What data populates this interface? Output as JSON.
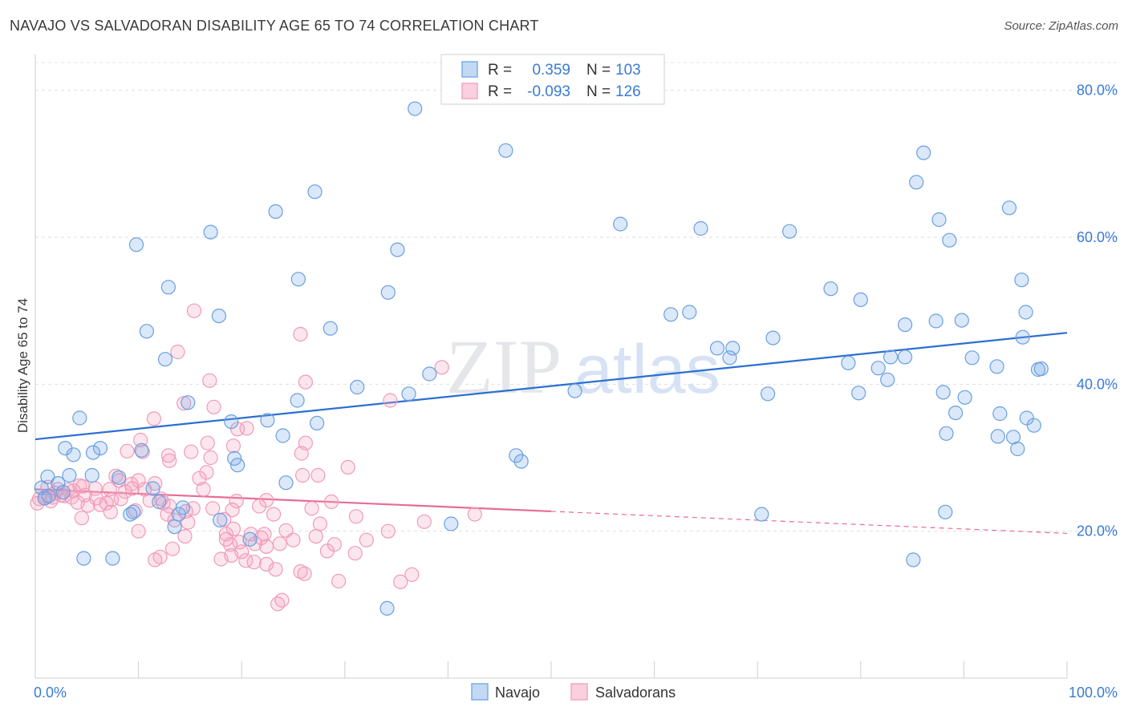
{
  "header": {
    "title": "NAVAJO VS SALVADORAN DISABILITY AGE 65 TO 74 CORRELATION CHART",
    "source": "Source: ZipAtlas.com"
  },
  "watermark": {
    "zip": "ZIP",
    "atlas": "atlas"
  },
  "stats_legend": {
    "rows": [
      {
        "r_label": "R =",
        "r_value": "0.359",
        "n_label": "N =",
        "n_value": "103",
        "color": "#7aaee8"
      },
      {
        "r_label": "R =",
        "r_value": "-0.093",
        "n_label": "N =",
        "n_value": "126",
        "color": "#f4a6c0"
      }
    ]
  },
  "bottom_legend": {
    "items": [
      {
        "label": "Navajo",
        "color": "#7aaee8"
      },
      {
        "label": "Salvadorans",
        "color": "#f4a6c0"
      }
    ]
  },
  "chart_data": {
    "type": "scatter",
    "title": "NAVAJO VS SALVADORAN DISABILITY AGE 65 TO 74 CORRELATION CHART",
    "xlabel": "",
    "ylabel": "Disability Age 65 to 74",
    "xlim": [
      0,
      100
    ],
    "ylim": [
      0,
      84
    ],
    "x_tick_labels": [
      "0.0%",
      "100.0%"
    ],
    "y_ticks": [
      20,
      40,
      60,
      80
    ],
    "y_tick_labels": [
      "20.0%",
      "40.0%",
      "60.0%",
      "80.0%"
    ],
    "grid": true,
    "colors": {
      "navajo": "#6a9fe0",
      "navajo_line": "#2b6fcf",
      "salvadorans": "#f09ab8",
      "salvadorans_line": "#e66b97",
      "axis_text": "#3a7bd5"
    },
    "series": [
      {
        "name": "Navajo",
        "r": 0.359,
        "n": 103,
        "trend": {
          "x0": 0,
          "y0": 32.5,
          "x1": 100,
          "y1": 47.0,
          "solid_until": 100
        },
        "points": [
          [
            36.8,
            77.5
          ],
          [
            45.6,
            71.8
          ],
          [
            86.1,
            71.5
          ],
          [
            85.4,
            67.5
          ],
          [
            27.1,
            66.2
          ],
          [
            23.3,
            63.5
          ],
          [
            94.4,
            64.0
          ],
          [
            17.0,
            60.7
          ],
          [
            56.7,
            61.8
          ],
          [
            64.5,
            61.2
          ],
          [
            73.1,
            60.8
          ],
          [
            87.6,
            62.4
          ],
          [
            88.6,
            59.6
          ],
          [
            9.8,
            59.0
          ],
          [
            35.1,
            58.3
          ],
          [
            25.5,
            54.3
          ],
          [
            95.6,
            54.2
          ],
          [
            12.9,
            53.2
          ],
          [
            77.1,
            53.0
          ],
          [
            34.2,
            52.5
          ],
          [
            80.0,
            51.5
          ],
          [
            96.0,
            49.8
          ],
          [
            17.8,
            49.3
          ],
          [
            61.6,
            49.5
          ],
          [
            63.4,
            49.8
          ],
          [
            28.6,
            47.6
          ],
          [
            10.8,
            47.2
          ],
          [
            84.3,
            48.1
          ],
          [
            87.3,
            48.6
          ],
          [
            89.8,
            48.7
          ],
          [
            95.7,
            46.4
          ],
          [
            71.5,
            46.3
          ],
          [
            66.1,
            44.9
          ],
          [
            67.6,
            44.9
          ],
          [
            12.6,
            43.4
          ],
          [
            67.3,
            43.6
          ],
          [
            78.8,
            42.9
          ],
          [
            82.9,
            43.7
          ],
          [
            84.3,
            43.7
          ],
          [
            90.8,
            43.6
          ],
          [
            93.2,
            42.4
          ],
          [
            97.2,
            42.0
          ],
          [
            97.5,
            42.1
          ],
          [
            38.2,
            41.4
          ],
          [
            81.7,
            42.2
          ],
          [
            82.6,
            40.6
          ],
          [
            31.2,
            39.6
          ],
          [
            36.2,
            38.7
          ],
          [
            52.3,
            39.1
          ],
          [
            71.0,
            38.7
          ],
          [
            79.8,
            38.8
          ],
          [
            88.0,
            38.9
          ],
          [
            90.1,
            38.2
          ],
          [
            14.8,
            37.5
          ],
          [
            25.4,
            37.8
          ],
          [
            4.3,
            35.4
          ],
          [
            19.0,
            34.9
          ],
          [
            22.5,
            35.1
          ],
          [
            27.3,
            34.7
          ],
          [
            89.2,
            36.1
          ],
          [
            93.5,
            36.0
          ],
          [
            96.1,
            35.4
          ],
          [
            96.8,
            34.4
          ],
          [
            24.0,
            33.0
          ],
          [
            88.3,
            33.3
          ],
          [
            93.3,
            32.9
          ],
          [
            94.8,
            32.8
          ],
          [
            2.9,
            31.3
          ],
          [
            6.3,
            31.3
          ],
          [
            10.3,
            31.0
          ],
          [
            3.7,
            30.4
          ],
          [
            5.6,
            30.7
          ],
          [
            19.3,
            29.9
          ],
          [
            19.6,
            29.0
          ],
          [
            46.6,
            30.3
          ],
          [
            47.1,
            29.5
          ],
          [
            95.2,
            31.2
          ],
          [
            1.2,
            27.4
          ],
          [
            3.3,
            27.6
          ],
          [
            2.2,
            26.5
          ],
          [
            5.5,
            27.6
          ],
          [
            8.1,
            27.3
          ],
          [
            24.3,
            26.6
          ],
          [
            0.6,
            25.9
          ],
          [
            2.7,
            25.3
          ],
          [
            11.4,
            25.8
          ],
          [
            12.0,
            24.0
          ],
          [
            0.9,
            24.5
          ],
          [
            1.3,
            24.8
          ],
          [
            9.2,
            22.3
          ],
          [
            9.5,
            22.6
          ],
          [
            13.9,
            22.3
          ],
          [
            14.3,
            23.2
          ],
          [
            17.9,
            21.5
          ],
          [
            13.5,
            20.6
          ],
          [
            40.3,
            21.0
          ],
          [
            70.4,
            22.3
          ],
          [
            88.2,
            22.6
          ],
          [
            4.7,
            16.3
          ],
          [
            7.5,
            16.3
          ],
          [
            20.8,
            18.9
          ],
          [
            85.1,
            16.1
          ],
          [
            34.1,
            9.5
          ]
        ]
      },
      {
        "name": "Salvadorans",
        "r": -0.093,
        "n": 126,
        "trend": {
          "x0": 0,
          "y0": 25.7,
          "x1": 100,
          "y1": 19.7,
          "solid_until": 50
        },
        "points": [
          [
            15.4,
            50.0
          ],
          [
            25.7,
            46.8
          ],
          [
            13.8,
            44.4
          ],
          [
            39.4,
            42.3
          ],
          [
            16.9,
            40.5
          ],
          [
            26.2,
            40.3
          ],
          [
            34.4,
            37.8
          ],
          [
            14.4,
            37.4
          ],
          [
            17.3,
            36.9
          ],
          [
            11.5,
            35.3
          ],
          [
            20.5,
            34.0
          ],
          [
            19.6,
            33.9
          ],
          [
            10.2,
            32.4
          ],
          [
            16.7,
            32.0
          ],
          [
            26.2,
            32.0
          ],
          [
            19.2,
            31.6
          ],
          [
            8.9,
            30.9
          ],
          [
            10.4,
            30.8
          ],
          [
            12.9,
            30.3
          ],
          [
            15.1,
            30.8
          ],
          [
            25.8,
            30.6
          ],
          [
            13.0,
            29.6
          ],
          [
            17.0,
            30.0
          ],
          [
            30.3,
            28.7
          ],
          [
            16.6,
            28.0
          ],
          [
            25.9,
            27.6
          ],
          [
            27.4,
            27.6
          ],
          [
            7.8,
            27.5
          ],
          [
            8.1,
            26.9
          ],
          [
            9.3,
            26.4
          ],
          [
            10.0,
            26.9
          ],
          [
            11.6,
            26.5
          ],
          [
            15.9,
            27.2
          ],
          [
            4.3,
            26.2
          ],
          [
            4.6,
            26.1
          ],
          [
            1.2,
            26.0
          ],
          [
            2.2,
            25.7
          ],
          [
            3.2,
            25.6
          ],
          [
            1.9,
            25.2
          ],
          [
            3.7,
            25.5
          ],
          [
            5.8,
            25.8
          ],
          [
            7.2,
            25.7
          ],
          [
            8.7,
            25.4
          ],
          [
            9.4,
            25.8
          ],
          [
            10.6,
            25.7
          ],
          [
            16.3,
            25.7
          ],
          [
            2.5,
            24.9
          ],
          [
            0.4,
            24.4
          ],
          [
            1.0,
            24.7
          ],
          [
            1.7,
            24.6
          ],
          [
            2.8,
            24.8
          ],
          [
            3.5,
            24.6
          ],
          [
            4.8,
            24.9
          ],
          [
            5.9,
            24.5
          ],
          [
            7.4,
            24.3
          ],
          [
            8.3,
            24.4
          ],
          [
            11.1,
            24.2
          ],
          [
            0.2,
            23.8
          ],
          [
            1.5,
            24.1
          ],
          [
            4.1,
            23.9
          ],
          [
            6.3,
            23.6
          ],
          [
            6.9,
            23.8
          ],
          [
            12.4,
            23.8
          ],
          [
            13.0,
            23.4
          ],
          [
            15.3,
            23.1
          ],
          [
            14.6,
            22.7
          ],
          [
            19.5,
            24.1
          ],
          [
            22.4,
            24.2
          ],
          [
            28.7,
            24.0
          ],
          [
            7.3,
            22.6
          ],
          [
            12.8,
            22.3
          ],
          [
            17.2,
            23.1
          ],
          [
            19.1,
            22.9
          ],
          [
            21.7,
            23.4
          ],
          [
            31.1,
            22.0
          ],
          [
            42.6,
            22.3
          ],
          [
            4.5,
            21.8
          ],
          [
            13.5,
            21.5
          ],
          [
            14.8,
            21.2
          ],
          [
            18.3,
            21.6
          ],
          [
            23.1,
            22.3
          ],
          [
            27.6,
            21.0
          ],
          [
            37.7,
            21.3
          ],
          [
            10.0,
            20.0
          ],
          [
            19.2,
            20.3
          ],
          [
            20.9,
            19.6
          ],
          [
            22.2,
            19.6
          ],
          [
            24.3,
            20.1
          ],
          [
            34.2,
            20.0
          ],
          [
            14.5,
            19.3
          ],
          [
            18.5,
            19.6
          ],
          [
            21.9,
            19.1
          ],
          [
            25.0,
            18.8
          ],
          [
            27.2,
            19.3
          ],
          [
            32.1,
            18.8
          ],
          [
            18.9,
            18.2
          ],
          [
            19.8,
            18.5
          ],
          [
            21.3,
            18.3
          ],
          [
            22.4,
            17.9
          ],
          [
            23.7,
            18.3
          ],
          [
            29.0,
            18.2
          ],
          [
            13.3,
            17.6
          ],
          [
            20.0,
            17.2
          ],
          [
            28.3,
            17.3
          ],
          [
            31.0,
            17.0
          ],
          [
            12.1,
            16.5
          ],
          [
            11.6,
            16.1
          ],
          [
            18.0,
            16.2
          ],
          [
            19.0,
            16.7
          ],
          [
            20.4,
            16.0
          ],
          [
            21.2,
            15.8
          ],
          [
            22.4,
            15.5
          ],
          [
            23.3,
            14.8
          ],
          [
            25.7,
            14.5
          ],
          [
            26.1,
            14.2
          ],
          [
            36.5,
            14.1
          ],
          [
            29.4,
            13.2
          ],
          [
            35.4,
            13.1
          ],
          [
            23.5,
            10.1
          ],
          [
            23.9,
            10.6
          ],
          [
            18.5,
            18.9
          ],
          [
            26.8,
            23.1
          ],
          [
            12.2,
            24.4
          ],
          [
            9.7,
            22.8
          ],
          [
            5.1,
            23.5
          ]
        ]
      }
    ]
  }
}
